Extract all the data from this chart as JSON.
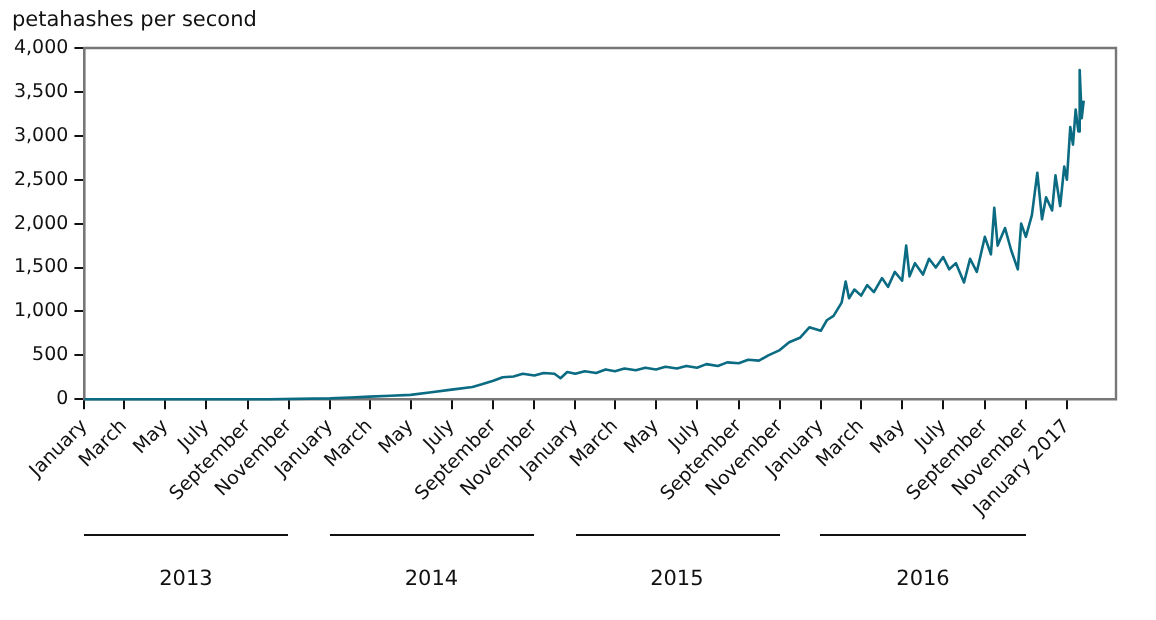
{
  "chart_data": {
    "type": "line",
    "ylabel": "petahashes per second",
    "color": "#0a6b82",
    "legend": false,
    "grid": false,
    "marker": "none",
    "xlim": [
      "2013-01-01",
      "2017-03-15"
    ],
    "xticks": [
      {
        "value": "2013-01-01",
        "label": "January"
      },
      {
        "value": "2013-03-01",
        "label": "March"
      },
      {
        "value": "2013-05-01",
        "label": "May"
      },
      {
        "value": "2013-07-01",
        "label": "July"
      },
      {
        "value": "2013-09-01",
        "label": "September"
      },
      {
        "value": "2013-11-01",
        "label": "November"
      },
      {
        "value": "2014-01-01",
        "label": "January"
      },
      {
        "value": "2014-03-01",
        "label": "March"
      },
      {
        "value": "2014-05-01",
        "label": "May"
      },
      {
        "value": "2014-07-01",
        "label": "July"
      },
      {
        "value": "2014-09-01",
        "label": "September"
      },
      {
        "value": "2014-11-01",
        "label": "November"
      },
      {
        "value": "2015-01-01",
        "label": "January"
      },
      {
        "value": "2015-03-01",
        "label": "March"
      },
      {
        "value": "2015-05-01",
        "label": "May"
      },
      {
        "value": "2015-07-01",
        "label": "July"
      },
      {
        "value": "2015-09-01",
        "label": "September"
      },
      {
        "value": "2015-11-01",
        "label": "November"
      },
      {
        "value": "2016-01-01",
        "label": "January"
      },
      {
        "value": "2016-03-01",
        "label": "March"
      },
      {
        "value": "2016-05-01",
        "label": "May"
      },
      {
        "value": "2016-07-01",
        "label": "July"
      },
      {
        "value": "2016-09-01",
        "label": "September"
      },
      {
        "value": "2016-11-01",
        "label": "November"
      },
      {
        "value": "2017-01-01",
        "label": "January 2017"
      }
    ],
    "x2lim": [
      "2013-01-01",
      "2017-03-15"
    ],
    "x2ticks": [
      {
        "value": "2013-06-01",
        "label": "2013"
      },
      {
        "value": "2014-06-01",
        "label": "2014"
      },
      {
        "value": "2015-06-01",
        "label": "2015"
      },
      {
        "value": "2016-06-01",
        "label": "2016"
      }
    ],
    "ylim": [
      0,
      4000
    ],
    "yticks": [
      0,
      500,
      {
        "value": 1000,
        "label": "1,000"
      },
      {
        "value": 1500,
        "label": "1,500"
      },
      {
        "value": 2000,
        "label": "2,000"
      },
      {
        "value": 2500,
        "label": "2,500"
      },
      {
        "value": 3000,
        "label": "3,000"
      },
      {
        "value": 3500,
        "label": "3,500"
      },
      {
        "value": 4000,
        "label": "4,000"
      }
    ],
    "x": [
      "2013-01-01",
      "2013-04-01",
      "2013-07-01",
      "2013-10-01",
      "2014-01-01",
      "2014-02-01",
      "2014-03-01",
      "2014-04-01",
      "2014-05-01",
      "2014-06-01",
      "2014-07-01",
      "2014-08-01",
      "2014-08-15",
      "2014-09-01",
      "2014-09-15",
      "2014-10-01",
      "2014-10-15",
      "2014-11-01",
      "2014-11-15",
      "2014-12-01",
      "2014-12-10",
      "2014-12-20",
      "2015-01-01",
      "2015-01-15",
      "2015-02-01",
      "2015-02-15",
      "2015-03-01",
      "2015-03-15",
      "2015-04-01",
      "2015-04-15",
      "2015-05-01",
      "2015-05-15",
      "2015-06-01",
      "2015-06-15",
      "2015-07-01",
      "2015-07-15",
      "2015-08-01",
      "2015-08-15",
      "2015-09-01",
      "2015-09-15",
      "2015-10-01",
      "2015-10-15",
      "2015-11-01",
      "2015-11-15",
      "2015-12-01",
      "2015-12-15",
      "2016-01-01",
      "2016-01-10",
      "2016-01-20",
      "2016-02-01",
      "2016-02-07",
      "2016-02-12",
      "2016-02-20",
      "2016-03-01",
      "2016-03-10",
      "2016-03-20",
      "2016-04-01",
      "2016-04-10",
      "2016-04-20",
      "2016-05-01",
      "2016-05-07",
      "2016-05-12",
      "2016-05-20",
      "2016-06-01",
      "2016-06-10",
      "2016-06-20",
      "2016-07-01",
      "2016-07-10",
      "2016-07-20",
      "2016-08-01",
      "2016-08-10",
      "2016-08-20",
      "2016-09-01",
      "2016-09-10",
      "2016-09-15",
      "2016-09-20",
      "2016-10-01",
      "2016-10-10",
      "2016-10-20",
      "2016-10-25",
      "2016-11-01",
      "2016-11-10",
      "2016-11-18",
      "2016-11-25",
      "2016-12-01",
      "2016-12-10",
      "2016-12-15",
      "2016-12-22",
      "2016-12-28",
      "2017-01-01",
      "2017-01-06",
      "2017-01-10",
      "2017-01-14",
      "2017-01-18",
      "2017-01-20",
      "2017-01-23",
      "2017-01-26"
    ],
    "values": [
      0,
      0,
      0,
      0,
      10,
      20,
      30,
      40,
      50,
      80,
      110,
      140,
      170,
      210,
      250,
      260,
      290,
      270,
      300,
      290,
      240,
      310,
      290,
      320,
      300,
      340,
      320,
      350,
      330,
      360,
      340,
      370,
      350,
      380,
      360,
      400,
      380,
      420,
      410,
      450,
      440,
      500,
      560,
      650,
      700,
      820,
      780,
      900,
      950,
      1100,
      1340,
      1150,
      1250,
      1180,
      1300,
      1220,
      1380,
      1280,
      1450,
      1350,
      1750,
      1400,
      1550,
      1420,
      1600,
      1500,
      1620,
      1480,
      1550,
      1330,
      1600,
      1450,
      1850,
      1650,
      2180,
      1750,
      1950,
      1700,
      1480,
      2000,
      1850,
      2100,
      2580,
      2050,
      2300,
      2150,
      2550,
      2200,
      2650,
      2500,
      3100,
      2900,
      3300,
      3050,
      3750,
      3200,
      3400
    ]
  }
}
